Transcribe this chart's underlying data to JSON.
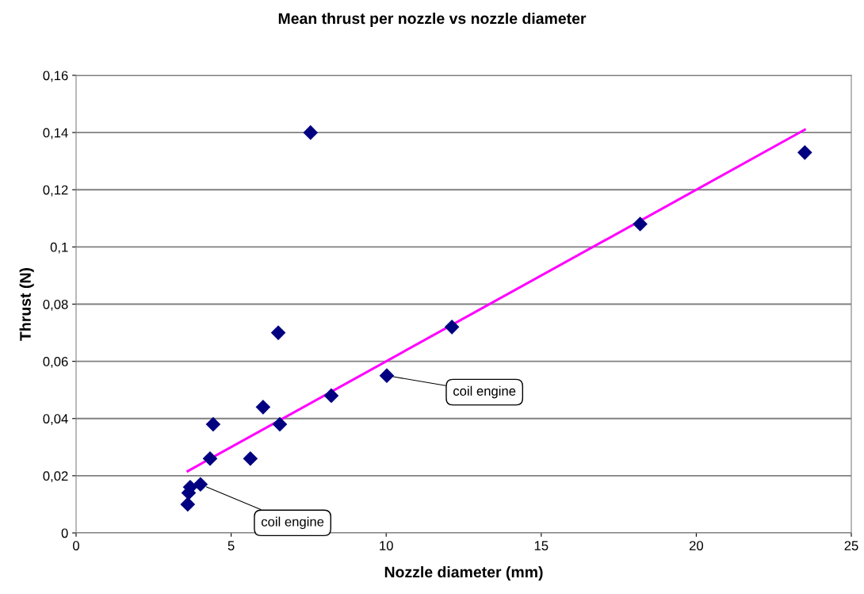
{
  "chart_data": {
    "type": "scatter",
    "title": "Mean thrust per nozzle vs nozzle diameter",
    "xlabel": "Nozzle diameter (mm)",
    "ylabel": "Thrust (N)",
    "series": [
      {
        "color": "#000080",
        "marker": "diamond",
        "x": [
          3.6,
          3.63,
          3.68,
          4.01,
          4.32,
          4.42,
          5.62,
          6.03,
          6.57,
          6.52,
          7.56,
          8.23,
          10.02,
          12.12,
          18.19,
          23.5
        ],
        "values": [
          0.01,
          0.014,
          0.016,
          0.017,
          0.026,
          0.038,
          0.026,
          0.044,
          0.038,
          0.07,
          0.14,
          0.048,
          0.055,
          0.072,
          0.108,
          0.133
        ]
      },
      {
        "type": "line",
        "color": "#ff00ff",
        "line_style": "solid",
        "marker": "none",
        "x": [
          3.6,
          23.5
        ],
        "values": [
          0.0216,
          0.141
        ]
      }
    ],
    "xlim": [
      0,
      25
    ],
    "xticks": [
      0,
      5,
      10,
      15,
      20,
      25
    ],
    "ylim": [
      0,
      0.16
    ],
    "yticks": [
      {
        "value": 0,
        "label": "0"
      },
      {
        "value": 0.02,
        "label": "0,02"
      },
      {
        "value": 0.04,
        "label": "0,04"
      },
      {
        "value": 0.06,
        "label": "0,06"
      },
      {
        "value": 0.08,
        "label": "0,08"
      },
      {
        "value": 0.1,
        "label": "0,1"
      },
      {
        "value": 0.12,
        "label": "0,12"
      },
      {
        "value": 0.14,
        "label": "0,14"
      },
      {
        "value": 0.16,
        "label": "0,16"
      }
    ],
    "grid": "y",
    "legend": false,
    "annotations": [
      {
        "text": "coil engine",
        "x": 10.02,
        "y": 0.055
      },
      {
        "text": "coil engine",
        "x": 4.01,
        "y": 0.017
      }
    ]
  }
}
